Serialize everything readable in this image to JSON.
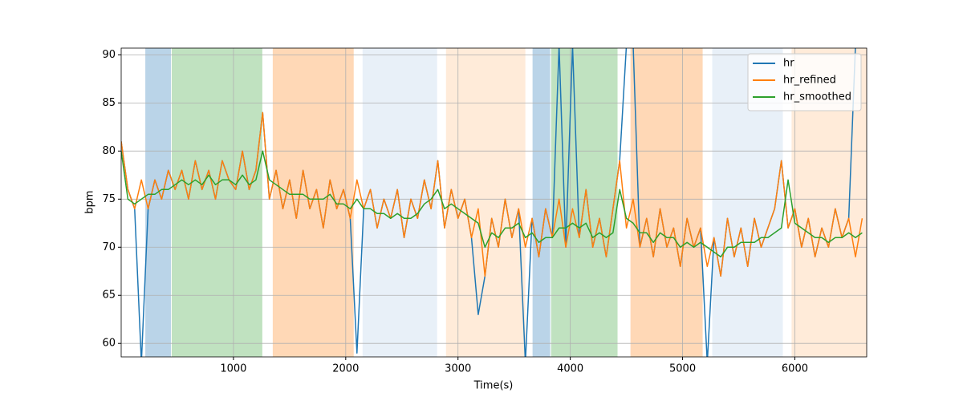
{
  "chart_data": {
    "type": "line",
    "xlabel": "Time(s)",
    "ylabel": "bpm",
    "xlim": [
      0,
      6640
    ],
    "ylim": [
      58.6,
      90.7
    ],
    "xticks": [
      1000,
      2000,
      3000,
      4000,
      5000,
      6000
    ],
    "yticks": [
      60,
      65,
      70,
      75,
      80,
      85,
      90
    ],
    "grid": true,
    "legend": "upper right",
    "spans": [
      {
        "start": 215,
        "end": 443,
        "color": "#bad4e8"
      },
      {
        "start": 450,
        "end": 1257,
        "color": "#c0e2c0"
      },
      {
        "start": 1350,
        "end": 2071,
        "color": "#ffd8b6"
      },
      {
        "start": 2150,
        "end": 2814,
        "color": "#e8f0f8"
      },
      {
        "start": 2893,
        "end": 3600,
        "color": "#ffebd9"
      },
      {
        "start": 3664,
        "end": 3821,
        "color": "#bad4e8"
      },
      {
        "start": 3829,
        "end": 4421,
        "color": "#c0e2c0"
      },
      {
        "start": 4536,
        "end": 5179,
        "color": "#ffd8b6"
      },
      {
        "start": 5264,
        "end": 5893,
        "color": "#e8f0f8"
      },
      {
        "start": 5971,
        "end": 6640,
        "color": "#ffebd9"
      }
    ],
    "x": [
      0,
      60,
      120,
      180,
      240,
      300,
      360,
      420,
      480,
      540,
      600,
      660,
      720,
      780,
      840,
      900,
      960,
      1020,
      1080,
      1140,
      1200,
      1260,
      1320,
      1380,
      1440,
      1500,
      1560,
      1620,
      1680,
      1740,
      1800,
      1860,
      1920,
      1980,
      2040,
      2100,
      2160,
      2220,
      2280,
      2340,
      2400,
      2460,
      2520,
      2580,
      2640,
      2700,
      2760,
      2820,
      2880,
      2940,
      3000,
      3060,
      3120,
      3180,
      3240,
      3300,
      3360,
      3420,
      3480,
      3540,
      3600,
      3660,
      3720,
      3780,
      3840,
      3900,
      3960,
      4020,
      4080,
      4140,
      4200,
      4260,
      4320,
      4380,
      4440,
      4500,
      4560,
      4620,
      4680,
      4740,
      4800,
      4860,
      4920,
      4980,
      5040,
      5100,
      5160,
      5220,
      5280,
      5340,
      5400,
      5460,
      5520,
      5580,
      5640,
      5700,
      5760,
      5820,
      5880,
      5940,
      6000,
      6060,
      6120,
      6180,
      6240,
      6300,
      6360,
      6420,
      6480,
      6540,
      6600
    ],
    "series": [
      {
        "name": "hr",
        "color": "#1f77b4",
        "values": [
          81,
          76,
          74,
          58,
          74,
          77,
          75,
          78,
          76,
          78,
          75,
          79,
          76,
          78,
          75,
          79,
          77,
          76,
          80,
          76,
          78,
          84,
          75,
          78,
          74,
          77,
          73,
          78,
          74,
          76,
          72,
          77,
          74,
          76,
          73,
          59,
          74,
          76,
          72,
          75,
          73,
          76,
          71,
          75,
          73,
          77,
          74,
          79,
          72,
          76,
          73,
          75,
          71,
          63,
          67,
          73,
          70,
          75,
          71,
          74,
          58,
          73,
          69,
          74,
          71,
          91,
          70,
          91,
          71,
          76,
          70,
          73,
          69,
          74,
          79,
          91,
          91,
          70,
          73,
          69,
          74,
          70,
          72,
          68,
          73,
          70,
          72,
          58,
          71,
          67,
          73,
          69,
          72,
          68,
          73,
          70,
          72,
          74,
          79,
          72,
          74,
          70,
          73,
          69,
          72,
          70,
          74,
          71,
          73,
          91,
          91
        ]
      },
      {
        "name": "hr_refined",
        "color": "#ff7f0e",
        "values": [
          81,
          76,
          74,
          77,
          74,
          77,
          75,
          78,
          76,
          78,
          75,
          79,
          76,
          78,
          75,
          79,
          77,
          76,
          80,
          76,
          78,
          84,
          75,
          78,
          74,
          77,
          73,
          78,
          74,
          76,
          72,
          77,
          74,
          76,
          73,
          77,
          74,
          76,
          72,
          75,
          73,
          76,
          71,
          75,
          73,
          77,
          74,
          79,
          72,
          76,
          73,
          75,
          71,
          74,
          67,
          73,
          70,
          75,
          71,
          74,
          70,
          73,
          69,
          74,
          71,
          75,
          70,
          74,
          71,
          76,
          70,
          73,
          69,
          74,
          79,
          72,
          75,
          70,
          73,
          69,
          74,
          70,
          72,
          68,
          73,
          70,
          72,
          68,
          71,
          67,
          73,
          69,
          72,
          68,
          73,
          70,
          72,
          74,
          79,
          72,
          74,
          70,
          73,
          69,
          72,
          70,
          74,
          71,
          73,
          69,
          73
        ]
      },
      {
        "name": "hr_smoothed",
        "color": "#2ca02c",
        "values": [
          80,
          75,
          74.5,
          75,
          75.5,
          75.5,
          76,
          76,
          76.5,
          77,
          76.5,
          77,
          76.5,
          77.5,
          76.5,
          77,
          77,
          76.5,
          77.5,
          76.5,
          77,
          80,
          77,
          76.5,
          76,
          75.5,
          75.5,
          75.5,
          75,
          75,
          75,
          75.5,
          74.5,
          74.5,
          74,
          75,
          74,
          74,
          73.5,
          73.5,
          73,
          73.5,
          73,
          73,
          73.5,
          74.5,
          75,
          76,
          74,
          74.5,
          74,
          73.5,
          73,
          72.5,
          70,
          71.5,
          71,
          72,
          72,
          72.5,
          71,
          71.5,
          70.5,
          71,
          71,
          72,
          72,
          72.5,
          72,
          72.5,
          71,
          71.5,
          71,
          71.5,
          76,
          73,
          72.5,
          71.5,
          71.5,
          70.5,
          71.5,
          71,
          71,
          70,
          70.5,
          70,
          70.5,
          70,
          69.5,
          69,
          70,
          70,
          70.5,
          70.5,
          70.5,
          71,
          71,
          71.5,
          72,
          77,
          72.5,
          72,
          71.5,
          71,
          71,
          70.5,
          71,
          71,
          71.5,
          71,
          71.5
        ]
      }
    ]
  }
}
